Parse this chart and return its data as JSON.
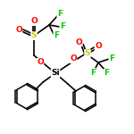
{
  "background": "#ffffff",
  "bond_color": "#000000",
  "atom_colors": {
    "F": "#00cc00",
    "O": "#ff0000",
    "S": "#cccc00",
    "Si": "#000000",
    "C": "#000000"
  },
  "figsize": [
    1.5,
    1.5
  ],
  "dpi": 100
}
